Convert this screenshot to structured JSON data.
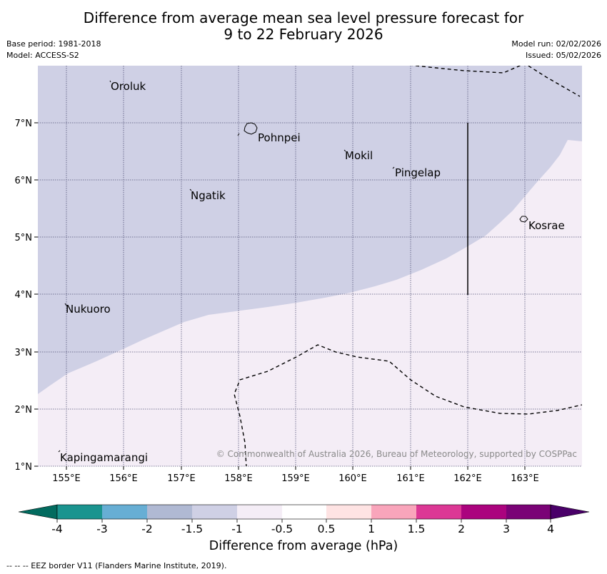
{
  "title_line1": "Difference from average mean sea level pressure forecast for",
  "title_line2": "9 to 22 February 2026",
  "meta": {
    "base_period": "Base period: 1981-2018",
    "model": "Model: ACCESS-S2",
    "model_run": "Model run: 02/02/2026",
    "issued": "Issued: 05/02/2026"
  },
  "map": {
    "lat_labels": [
      "7°N",
      "6°N",
      "5°N",
      "4°N",
      "3°N",
      "2°N",
      "1°N"
    ],
    "lon_labels": [
      "155°E",
      "156°E",
      "157°E",
      "158°E",
      "159°E",
      "160°E",
      "161°E",
      "162°E",
      "163°E"
    ],
    "places": {
      "oroluk": "Oroluk",
      "pohnpei": "Pohnpei",
      "mokil": "Mokil",
      "pingelap": "Pingelap",
      "ngatik": "Ngatik",
      "kosrae": "Kosrae",
      "nukuoro": "Nukuoro",
      "kapingamarangi": "Kapingamarangi"
    },
    "credit": "© Commonwealth of Australia 2026, Bureau of Meteorology, supported by COSPPac",
    "fill_colors": {
      "minus1p5_to_minus1": "#cfd0e5",
      "minus1_to_minus0p5": "#f4edf6"
    }
  },
  "colorbar": {
    "tick_labels": [
      "-4",
      "-3",
      "-2",
      "-1.5",
      "-1",
      "-0.5",
      "0.5",
      "1",
      "1.5",
      "2",
      "3",
      "4"
    ],
    "colors": [
      "#1a948f",
      "#67aed4",
      "#b0b9d3",
      "#cfd0e5",
      "#f4edf6",
      "#ffffff",
      "#fee3e3",
      "#f9a5bb",
      "#dc3895",
      "#ab037e",
      "#7a0276"
    ],
    "low_extend_color": "#026b5f",
    "high_extend_color": "#4a0069",
    "title": "Difference from average (hPa)"
  },
  "footer": "--  --  -- EEZ border V11 (Flanders Marine Institute, 2019)."
}
